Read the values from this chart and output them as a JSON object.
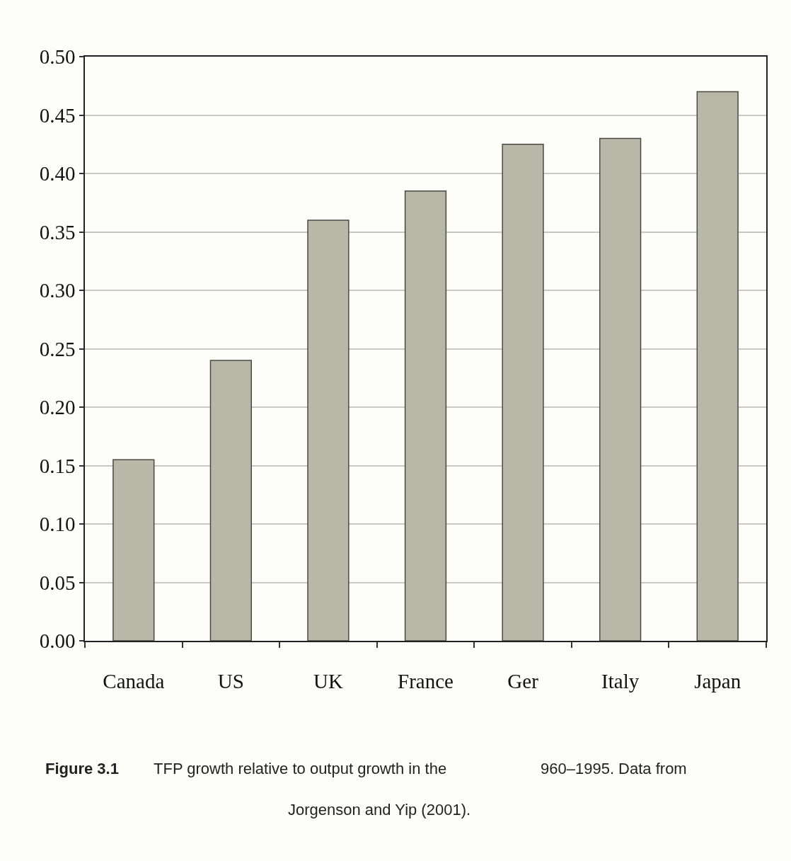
{
  "chart_data": {
    "type": "bar",
    "categories": [
      "Canada",
      "US",
      "UK",
      "France",
      "Ger",
      "Italy",
      "Japan"
    ],
    "values": [
      0.155,
      0.24,
      0.36,
      0.385,
      0.425,
      0.43,
      0.47
    ],
    "color": "#b7b8a8",
    "ylim": [
      0,
      0.5
    ],
    "yticks": [
      {
        "value": 0,
        "label": "0.00"
      },
      {
        "value": 0.05,
        "label": "0.05"
      },
      {
        "value": 0.1,
        "label": "0.10"
      },
      {
        "value": 0.15,
        "label": "0.15"
      },
      {
        "value": 0.2,
        "label": "0.20"
      },
      {
        "value": 0.25,
        "label": "0.25"
      },
      {
        "value": 0.3,
        "label": "0.30"
      },
      {
        "value": 0.35,
        "label": "0.35"
      },
      {
        "value": 0.4,
        "label": "0.40"
      },
      {
        "value": 0.45,
        "label": "0.45"
      },
      {
        "value": 0.5,
        "label": "0.50"
      }
    ],
    "grid": "y",
    "annotations": [
      "Figure 3.1",
      "TFP growth relative to output growth in the",
      "960–1995. Data from",
      "Jorgenson and Yip (2001)."
    ]
  }
}
